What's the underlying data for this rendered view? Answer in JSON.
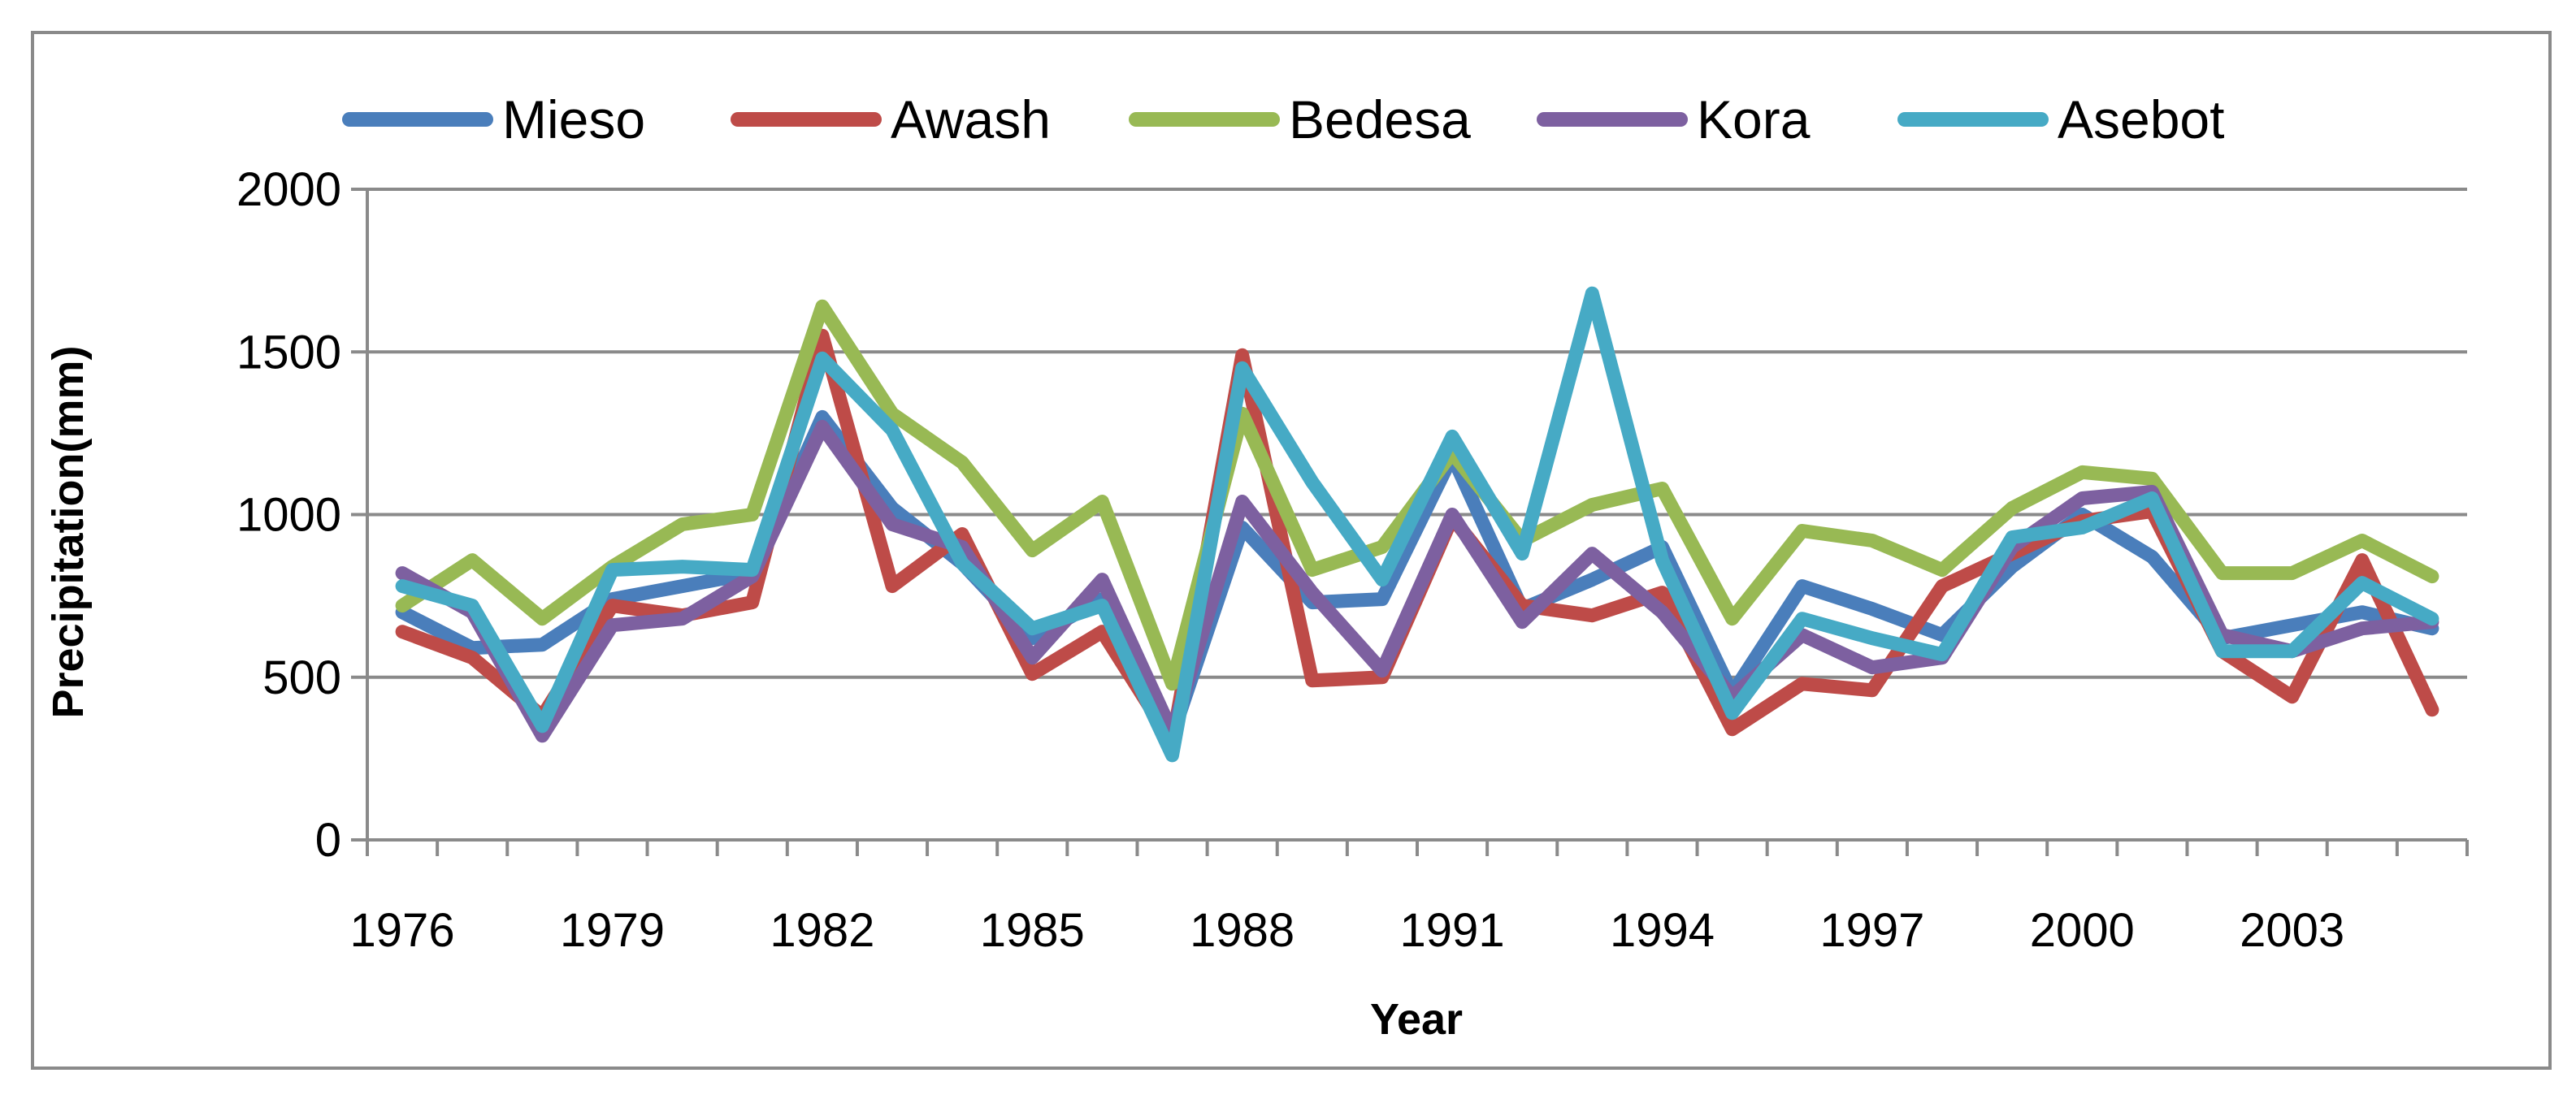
{
  "chart_data": {
    "type": "line",
    "title": "",
    "xlabel": "Year",
    "ylabel": "Precipitation(mm)",
    "ylim": [
      0,
      2000
    ],
    "yticks": [
      "0",
      "500",
      "1000",
      "1500",
      "2000"
    ],
    "xtick_labels": [
      "1976",
      "1979",
      "1982",
      "1985",
      "1988",
      "1991",
      "1994",
      "1997",
      "2000",
      "2003"
    ],
    "x": [
      1976,
      1977,
      1978,
      1979,
      1980,
      1981,
      1982,
      1983,
      1984,
      1985,
      1986,
      1987,
      1988,
      1989,
      1990,
      1991,
      1992,
      1993,
      1994,
      1995,
      1996,
      1997,
      1998,
      1999,
      2000,
      2001,
      2002,
      2003,
      2004,
      2005
    ],
    "grid": true,
    "legend_position": "top",
    "series": [
      {
        "name": "Mieso",
        "color": "#4a7ebb",
        "values": [
          700,
          590,
          600,
          740,
          780,
          820,
          1300,
          1020,
          850,
          620,
          740,
          320,
          960,
          730,
          740,
          1180,
          710,
          800,
          900,
          450,
          780,
          710,
          630,
          840,
          1000,
          870,
          620,
          660,
          700,
          650
        ]
      },
      {
        "name": "Awash",
        "color": "#be4b48",
        "values": [
          640,
          560,
          380,
          720,
          690,
          730,
          1550,
          780,
          940,
          510,
          640,
          300,
          1490,
          490,
          500,
          990,
          720,
          690,
          760,
          340,
          480,
          460,
          780,
          880,
          980,
          1010,
          580,
          440,
          860,
          400
        ]
      },
      {
        "name": "Bedesa",
        "color": "#98b954",
        "values": [
          720,
          860,
          680,
          840,
          970,
          1000,
          1640,
          1310,
          1160,
          890,
          1040,
          480,
          1310,
          830,
          900,
          1190,
          920,
          1030,
          1080,
          680,
          950,
          920,
          830,
          1020,
          1130,
          1110,
          820,
          820,
          920,
          810
        ]
      },
      {
        "name": "Kora",
        "color": "#7d60a0",
        "values": [
          820,
          700,
          320,
          660,
          680,
          810,
          1270,
          970,
          900,
          560,
          800,
          330,
          1040,
          760,
          520,
          1000,
          670,
          880,
          700,
          440,
          630,
          530,
          560,
          900,
          1050,
          1070,
          630,
          580,
          650,
          670
        ]
      },
      {
        "name": "Asebot",
        "color": "#46aac5",
        "values": [
          780,
          720,
          350,
          830,
          840,
          830,
          1480,
          1260,
          850,
          650,
          720,
          260,
          1450,
          1100,
          800,
          1240,
          880,
          1680,
          860,
          390,
          680,
          620,
          570,
          930,
          960,
          1050,
          580,
          580,
          790,
          680
        ]
      }
    ]
  }
}
